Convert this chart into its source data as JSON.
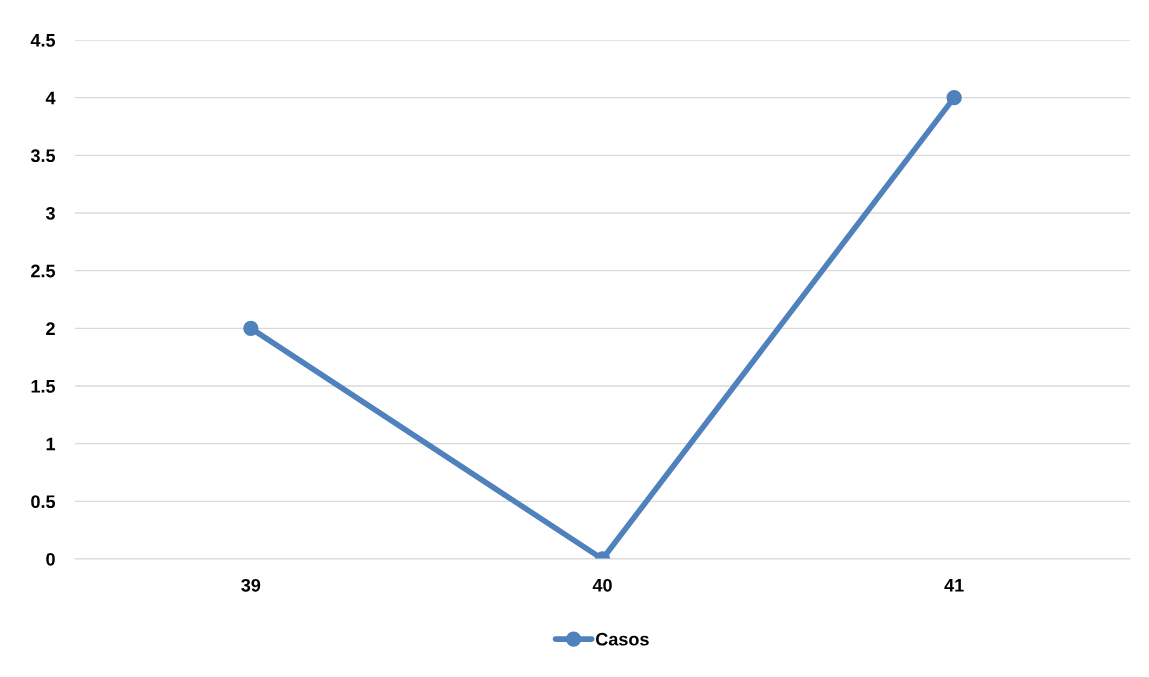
{
  "chart_data": {
    "type": "line",
    "categories": [
      "39",
      "40",
      "41"
    ],
    "series": [
      {
        "name": "Casos",
        "color": "#4f81bd",
        "values": [
          2,
          0,
          4
        ]
      }
    ],
    "ylim": [
      0,
      4.5
    ],
    "yticks": [
      0,
      0.5,
      1,
      1.5,
      2,
      2.5,
      3,
      3.5,
      4,
      4.5
    ],
    "grid": "y",
    "legend": "bottom",
    "marker": "circle",
    "line_style": "solid"
  }
}
